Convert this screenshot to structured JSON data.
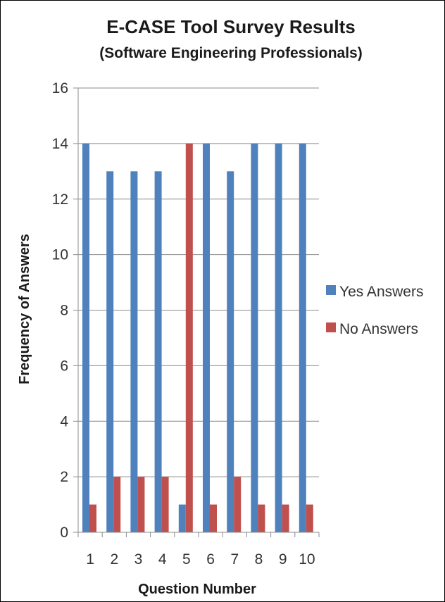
{
  "chart_data": {
    "type": "bar",
    "title": "E-CASE Tool Survey Results",
    "subtitle": "(Software Engineering Professionals)",
    "xlabel": "Question Number",
    "ylabel": "Frequency of Answers",
    "categories": [
      "1",
      "2",
      "3",
      "4",
      "5",
      "6",
      "7",
      "8",
      "9",
      "10"
    ],
    "series": [
      {
        "name": "Yes Answers",
        "color": "#4f81bd",
        "values": [
          14,
          13,
          13,
          13,
          1,
          14,
          13,
          14,
          14,
          14
        ]
      },
      {
        "name": "No Answers",
        "color": "#c0504d",
        "values": [
          1,
          2,
          2,
          2,
          14,
          1,
          2,
          1,
          1,
          1
        ]
      }
    ],
    "ylim": [
      0,
      16
    ],
    "yticks": [
      0,
      2,
      4,
      6,
      8,
      10,
      12,
      14,
      16
    ],
    "grid": true,
    "legend_position": "right"
  }
}
